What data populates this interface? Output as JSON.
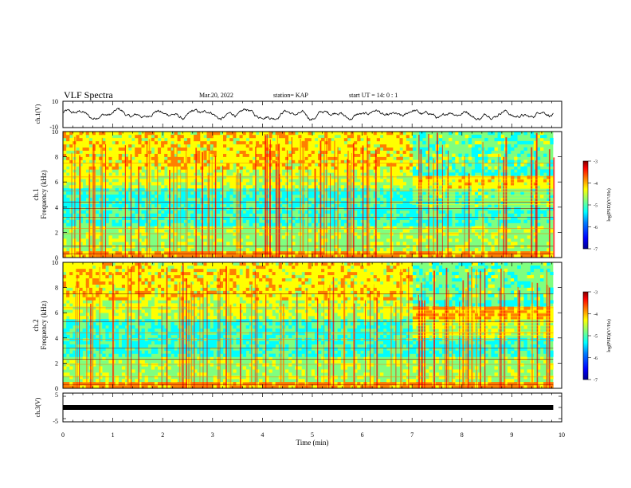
{
  "header": {
    "title": "VLF Spectra",
    "date": "Mar.20, 2022",
    "station": "station= KAP",
    "start": "start  UT =   14: 0  : 1"
  },
  "colors": {
    "trace": "#000000",
    "colormap": [
      "#00008f",
      "#0000ff",
      "#007fff",
      "#00ffff",
      "#7fff7f",
      "#ffff00",
      "#ff7f00",
      "#ff0000",
      "#7f0000"
    ]
  },
  "chart_data": [
    {
      "type": "line",
      "name": "ch1-waveform",
      "ylabel": "ch.1(V)",
      "xlim": [
        0,
        10
      ],
      "ylim": [
        -10,
        10
      ],
      "yticks": [
        "10",
        "-10"
      ],
      "description_series": "noisy signal fluctuating mostly between about -5 and +5 V"
    },
    {
      "type": "heatmap",
      "name": "ch1-spectrogram",
      "ylabel": "ch.1\nFrequency (kHz)",
      "xlim": [
        0,
        9.83
      ],
      "ylim": [
        0,
        10
      ],
      "yticks": [
        "0",
        "2",
        "4",
        "6",
        "8",
        "10"
      ],
      "colorbar": {
        "label": "log(PSD)(V²/Hz)",
        "range": [
          -7,
          -3
        ],
        "ticks": [
          "-3",
          "-4",
          "-5",
          "-6",
          "-7"
        ]
      }
    },
    {
      "type": "heatmap",
      "name": "ch2-spectrogram",
      "ylabel": "ch.2\nFrequency (kHz)",
      "xlim": [
        0,
        9.83
      ],
      "ylim": [
        0,
        10
      ],
      "yticks": [
        "0",
        "2",
        "4",
        "6",
        "8",
        "10"
      ],
      "colorbar": {
        "label": "log(PSD)(V²/Hz)",
        "range": [
          -7,
          -3
        ],
        "ticks": [
          "-3",
          "-4",
          "-5",
          "-6",
          "-7"
        ]
      }
    },
    {
      "type": "line",
      "name": "ch3-waveform",
      "ylabel": "ch.3(V)",
      "xlim": [
        0,
        10
      ],
      "ylim": [
        -5,
        5
      ],
      "yticks": [
        "5",
        "-5"
      ],
      "level": -0.5
    }
  ],
  "xaxis": {
    "label": "Time (min)",
    "ticks": [
      "0",
      "1",
      "2",
      "3",
      "4",
      "5",
      "6",
      "7",
      "8",
      "9",
      "10"
    ]
  }
}
